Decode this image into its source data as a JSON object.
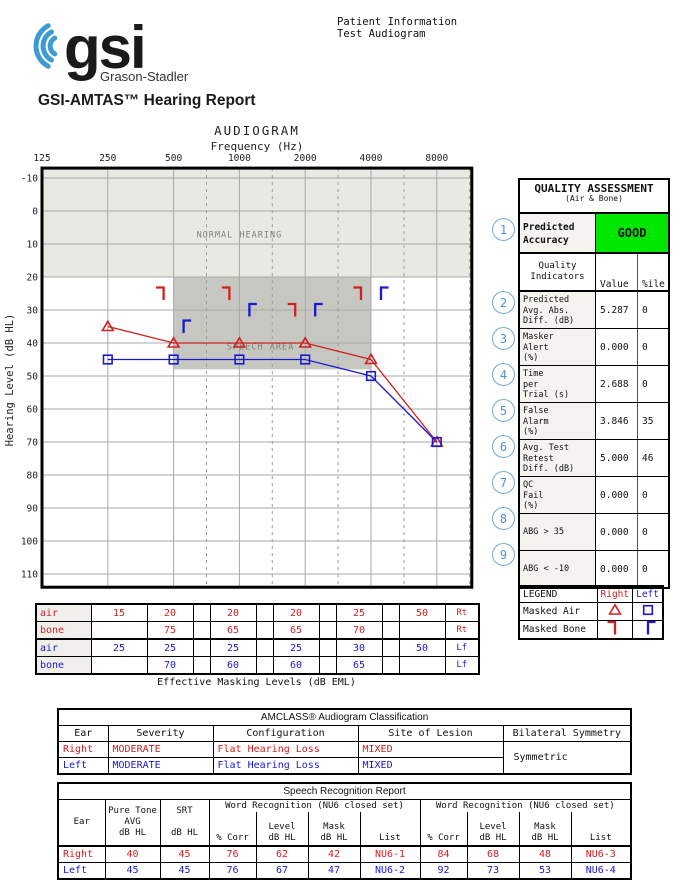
{
  "header": {
    "logo": {
      "text": "gsi",
      "tagline": "Grason-Stadler",
      "wave_color": "#3d9ad2"
    },
    "patient_info": "Patient Information\nTest Audiogram",
    "report_title": "GSI-AMTAS™ Hearing Report"
  },
  "colors": {
    "right": "#d02020",
    "left": "#1a1acc",
    "good_green": "#00e600",
    "circle_blue": "#72a9dc",
    "normal_band": "#e9e9e4",
    "speech_band": "#c7c7c2",
    "grid": "#a8a8a8"
  },
  "chart_data": {
    "type": "scatter",
    "title": "AUDIOGRAM",
    "xlabel": "Frequency (Hz)",
    "ylabel": "Hearing Level (dB HL)",
    "x_ticks": [
      125,
      250,
      500,
      1000,
      2000,
      4000,
      8000
    ],
    "x_dashed": [
      707,
      1414,
      2828,
      5657,
      11314
    ],
    "y_ticks": [
      -10,
      0,
      10,
      20,
      30,
      40,
      50,
      60,
      70,
      80,
      90,
      100,
      110
    ],
    "ylim": [
      -13,
      114
    ],
    "grid": true,
    "regions": [
      {
        "name": "NORMAL HEARING",
        "x": [
          125,
          11585
        ],
        "y": [
          -13.2,
          20
        ],
        "label_at": [
          1000,
          8
        ]
      },
      {
        "name": "SPEECH AREA",
        "x": [
          500,
          4000
        ],
        "y": [
          20,
          48
        ],
        "label_at": [
          1250,
          42
        ]
      }
    ],
    "series": [
      {
        "name": "Masked Air Right",
        "marker": "triangle",
        "color": "#d02020",
        "line": true,
        "dx": 0,
        "points": [
          [
            250,
            35
          ],
          [
            500,
            40
          ],
          [
            1000,
            40
          ],
          [
            2000,
            40
          ],
          [
            4000,
            45
          ],
          [
            8000,
            70
          ]
        ]
      },
      {
        "name": "Masked Air Left",
        "marker": "square",
        "color": "#1a1acc",
        "line": true,
        "dx": 0,
        "points": [
          [
            250,
            45
          ],
          [
            500,
            45
          ],
          [
            1000,
            45
          ],
          [
            2000,
            45
          ],
          [
            4000,
            50
          ],
          [
            8000,
            70
          ]
        ]
      },
      {
        "name": "Masked Bone Right",
        "marker": "bracket-right",
        "color": "#d02020",
        "line": false,
        "dx": -10,
        "points": [
          [
            500,
            25
          ],
          [
            1000,
            25
          ],
          [
            2000,
            30
          ],
          [
            4000,
            25
          ]
        ]
      },
      {
        "name": "Masked Bone Left",
        "marker": "bracket-left",
        "color": "#1a1acc",
        "line": false,
        "dx": 10,
        "points": [
          [
            500,
            35
          ],
          [
            1000,
            30
          ],
          [
            2000,
            30
          ],
          [
            4000,
            25
          ]
        ]
      }
    ]
  },
  "masking_table": {
    "caption": "Effective Masking Levels  (dB EML)",
    "frequencies": [
      250,
      500,
      1000,
      2000,
      4000,
      8000
    ],
    "rows": [
      {
        "label": "air",
        "side": "Rt",
        "color": "red",
        "values": [
          "15",
          "20",
          "20",
          "20",
          "25",
          "50"
        ]
      },
      {
        "label": "bone",
        "side": "Rt",
        "color": "red",
        "values": [
          "",
          "75",
          "65",
          "65",
          "70",
          ""
        ]
      },
      {
        "label": "air",
        "side": "Lf",
        "color": "blue",
        "values": [
          "25",
          "25",
          "25",
          "25",
          "30",
          "50"
        ]
      },
      {
        "label": "bone",
        "side": "Lf",
        "color": "blue",
        "values": [
          "",
          "70",
          "60",
          "60",
          "65",
          ""
        ]
      }
    ]
  },
  "quality": {
    "title": "QUALITY ASSESSMENT",
    "subtitle": "(Air & Bone)",
    "accuracy_label": "Predicted\nAccuracy",
    "accuracy_value": "GOOD",
    "col_headers": {
      "indicators": "Quality\nIndicators",
      "value": "Value",
      "pct": "%ile"
    },
    "rows": [
      {
        "num": "2",
        "label": "Predicted\nAvg. Abs.\nDiff. (dB)",
        "value": "5.287",
        "pct": "0"
      },
      {
        "num": "3",
        "label": "Masker\nAlert\n(%)",
        "value": "0.000",
        "pct": "0"
      },
      {
        "num": "4",
        "label": "Time\nper\nTrial (s)",
        "value": "2.688",
        "pct": "0"
      },
      {
        "num": "5",
        "label": "False\nAlarm\n(%)",
        "value": "3.846",
        "pct": "35"
      },
      {
        "num": "6",
        "label": "Avg. Test\nRetest\nDiff. (dB)",
        "value": "5.000",
        "pct": "46"
      },
      {
        "num": "7",
        "label": "QC\nFail\n(%)",
        "value": "0.000",
        "pct": "0"
      },
      {
        "num": "8",
        "label": "ABG > 35",
        "value": "0.000",
        "pct": "0"
      },
      {
        "num": "9",
        "label": "ABG < -10",
        "value": "0.000",
        "pct": "0"
      }
    ],
    "accuracy_num": "1"
  },
  "legend": {
    "title": "LEGEND",
    "right": "Right",
    "left": "Left",
    "rows": [
      {
        "label": "Masked Air",
        "right_marker": "triangle",
        "left_marker": "square"
      },
      {
        "label": "Masked Bone",
        "right_marker": "bracket-right",
        "left_marker": "bracket-left"
      }
    ]
  },
  "amclass": {
    "title": "AMCLASS® Audiogram Classification",
    "headers": [
      "Ear",
      "Severity",
      "Configuration",
      "Site of Lesion",
      "Bilateral Symmetry"
    ],
    "rows": [
      {
        "ear": "Right",
        "severity": "MODERATE",
        "configuration": "Flat Hearing Loss",
        "site": "MIXED",
        "color": "red"
      },
      {
        "ear": "Left",
        "severity": "MODERATE",
        "configuration": "Flat Hearing Loss",
        "site": "MIXED",
        "color": "blue"
      }
    ],
    "symmetry": "Symmetric"
  },
  "speech": {
    "title": "Speech Recognition Report",
    "headers": {
      "ear": "Ear",
      "pta": "Pure Tone\nAVG\ndB HL",
      "srt": "SRT\n\ndB HL",
      "wr_group": "Word Recognition (NU6 closed set)",
      "pct": "% Corr",
      "level": "Level\ndB HL",
      "mask": "Mask\ndB HL",
      "list": "List"
    },
    "rows": [
      {
        "ear": "Right",
        "color": "red",
        "pta": "40",
        "srt": "45",
        "wr1": {
          "pct": "76",
          "level": "62",
          "mask": "42",
          "list": "NU6-1"
        },
        "wr2": {
          "pct": "84",
          "level": "68",
          "mask": "48",
          "list": "NU6-3"
        }
      },
      {
        "ear": "Left",
        "color": "blue",
        "pta": "45",
        "srt": "45",
        "wr1": {
          "pct": "76",
          "level": "67",
          "mask": "47",
          "list": "NU6-2"
        },
        "wr2": {
          "pct": "92",
          "level": "73",
          "mask": "53",
          "list": "NU6-4"
        }
      }
    ]
  }
}
